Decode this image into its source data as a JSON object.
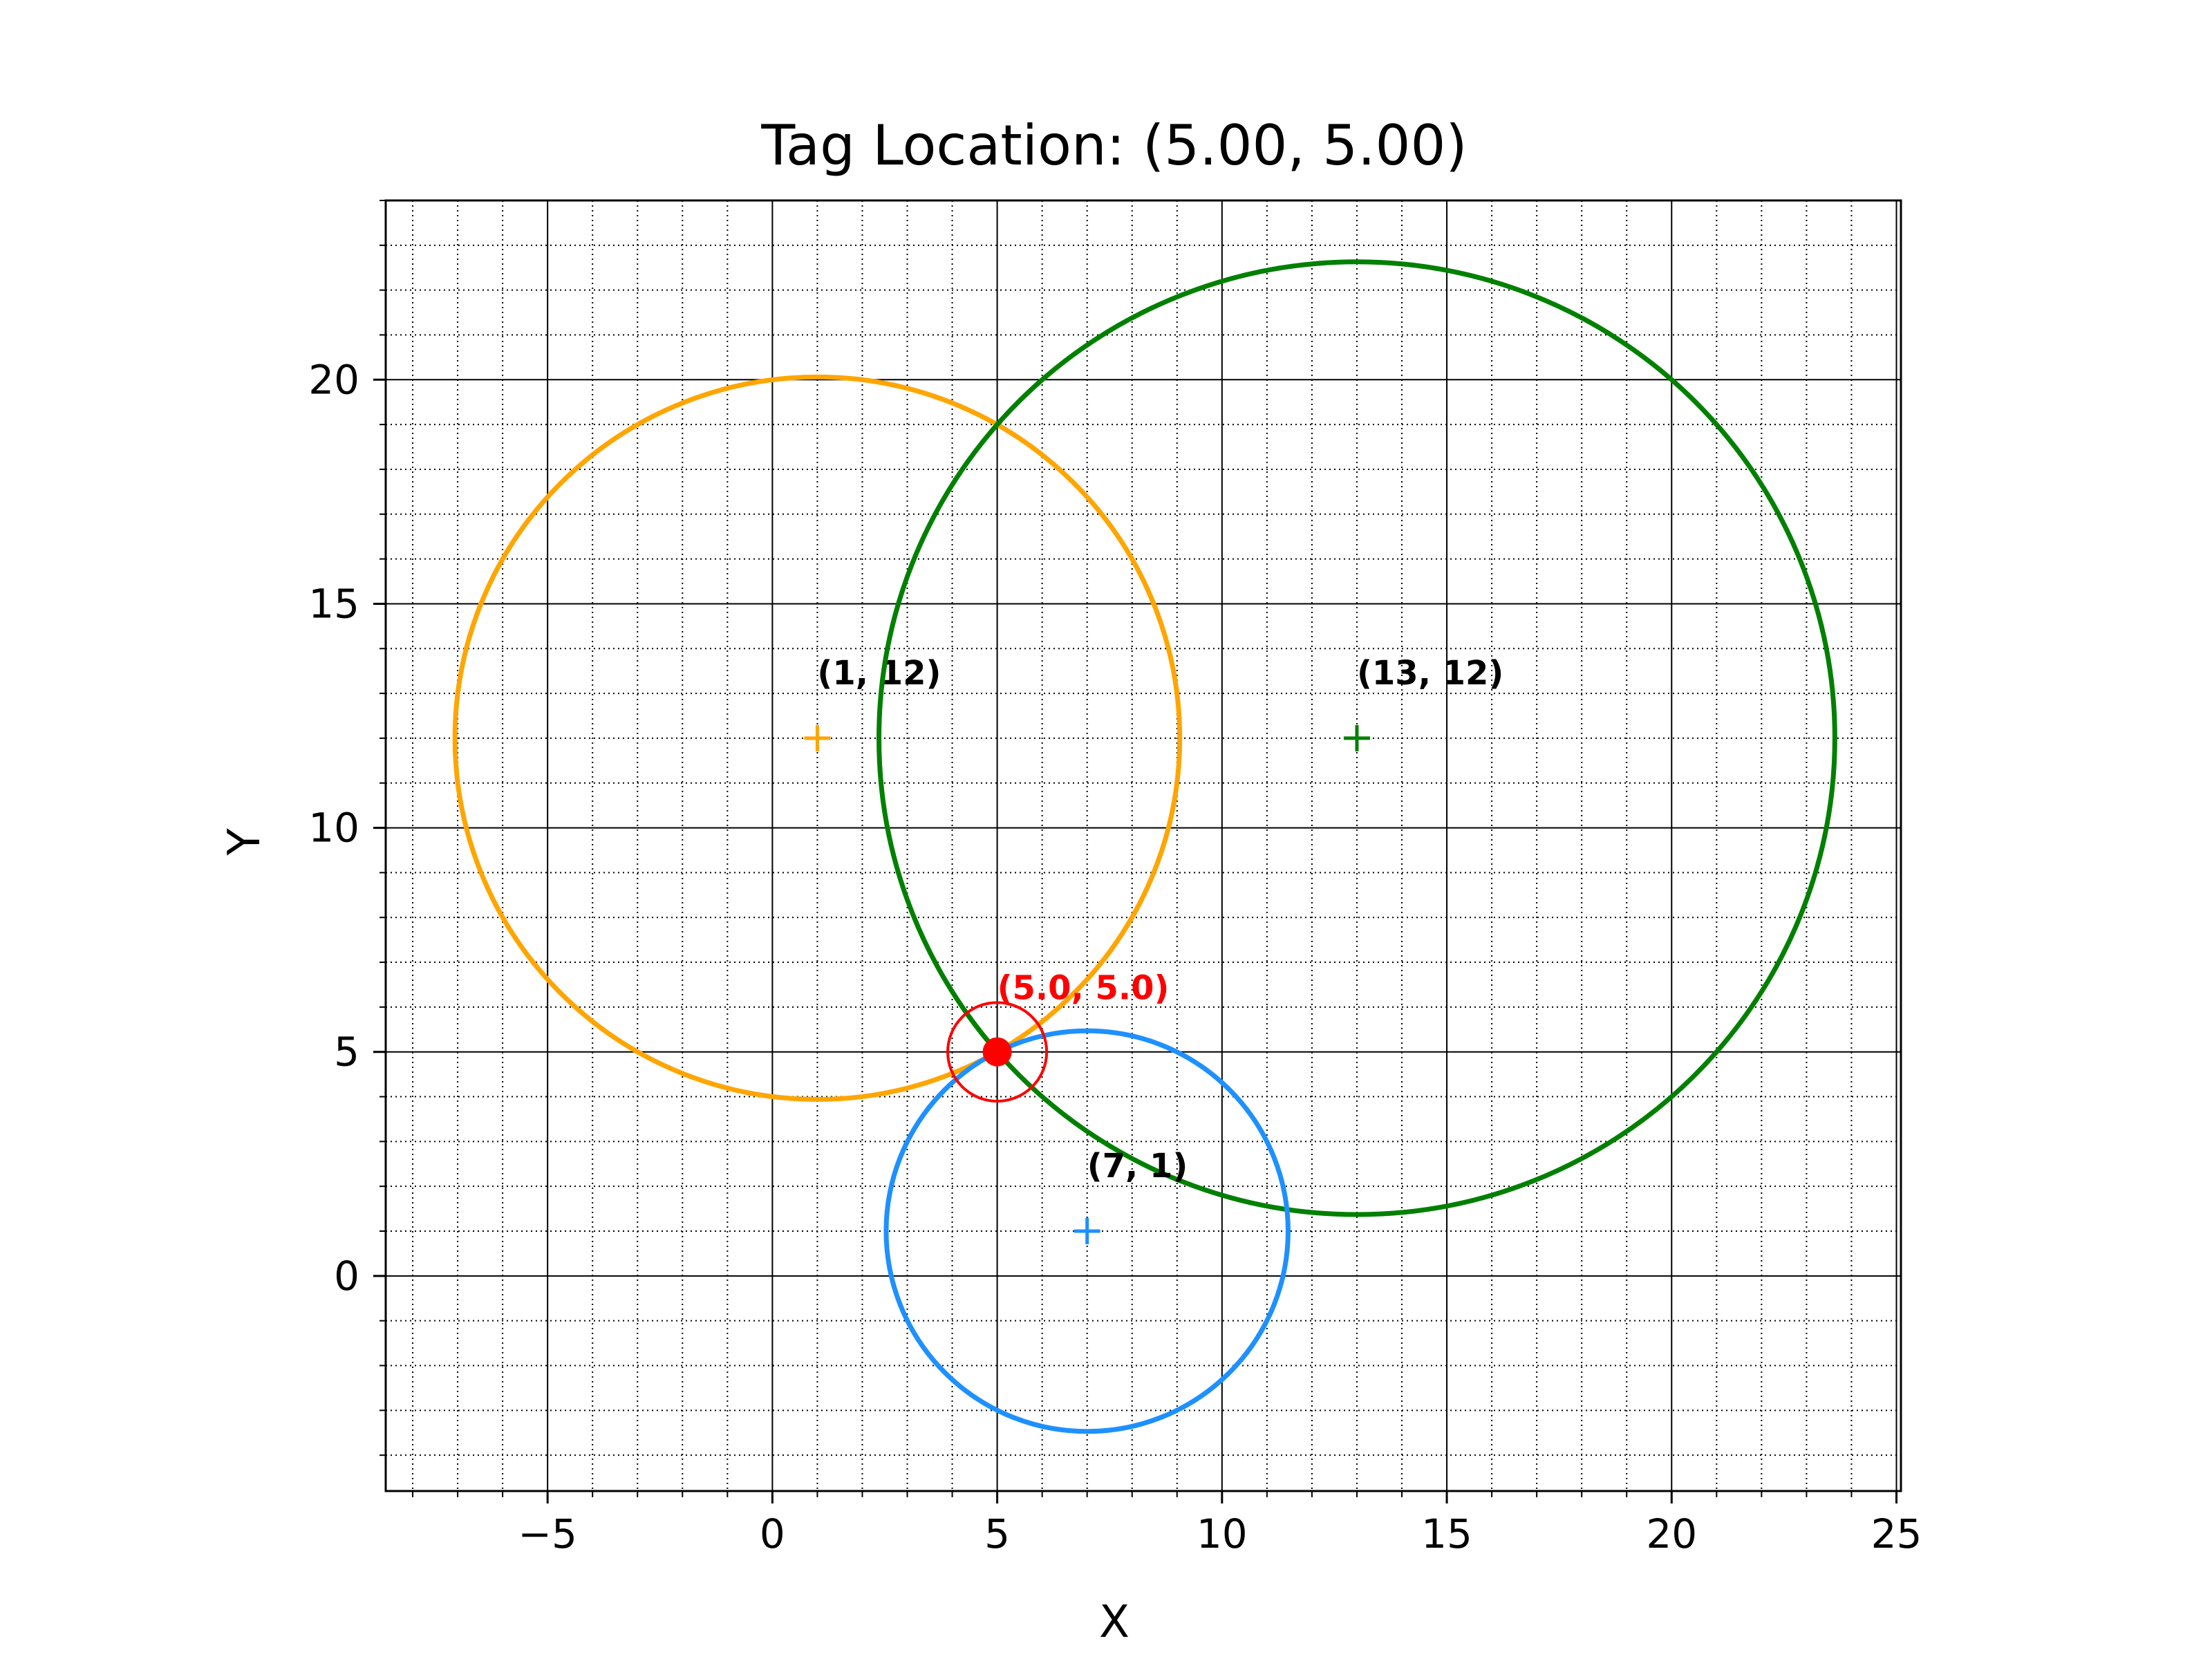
{
  "chart_data": {
    "type": "scatter",
    "title": "Tag Location: (5.00, 5.00)",
    "xlabel": "X",
    "ylabel": "Y",
    "xlim": [
      -8.6,
      25.1
    ],
    "ylim": [
      -4.8,
      24.0
    ],
    "x_ticks": [
      -5,
      0,
      5,
      10,
      15,
      20,
      25
    ],
    "x_tick_labels": [
      "−5",
      "0",
      "5",
      "10",
      "15",
      "20",
      "25"
    ],
    "y_ticks": [
      0,
      5,
      10,
      15,
      20
    ],
    "y_tick_labels": [
      "0",
      "5",
      "10",
      "15",
      "20"
    ],
    "minor_step": 1,
    "grid": {
      "major": true,
      "minor": true,
      "minor_style": "dotted"
    },
    "anchors": [
      {
        "label": "(1, 12)",
        "x": 1,
        "y": 12,
        "radius": 8.06,
        "color": "#FFA500"
      },
      {
        "label": "(13, 12)",
        "x": 13,
        "y": 12,
        "radius": 10.63,
        "color": "#008000"
      },
      {
        "label": "(7, 1)",
        "x": 7,
        "y": 1,
        "radius": 4.47,
        "color": "#1E90FF"
      }
    ],
    "tag": {
      "label": "(5.0, 5.0)",
      "x": 5.0,
      "y": 5.0,
      "error_radius": 1.1,
      "color": "#FF0000"
    }
  }
}
